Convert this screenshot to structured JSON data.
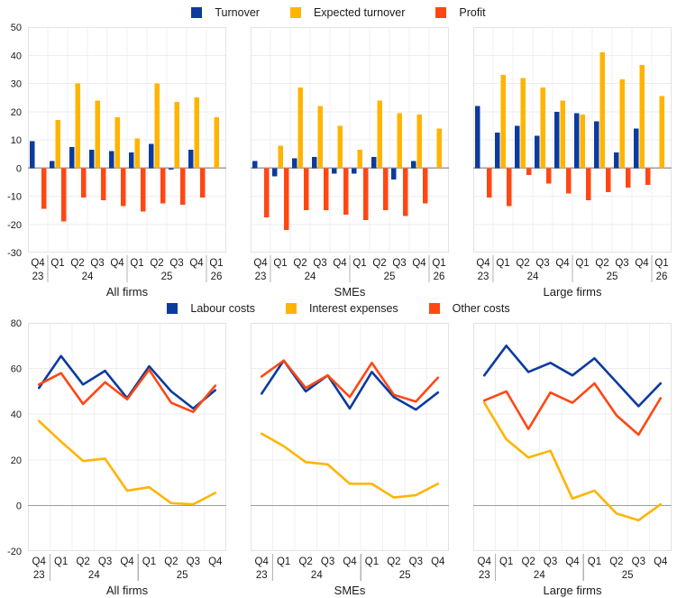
{
  "colors": {
    "series_blue": "#0c3b9e",
    "series_yellow": "#ffb400",
    "series_orange": "#ff4713",
    "panel_border": "#e3e3e3",
    "grid_h": "#ededed",
    "grid_v": "#f1f1f1",
    "zero_line": "#9e9e9e",
    "year_separator": "#b3b3b3",
    "text": "#1a1a1a"
  },
  "chart_data": {
    "top": {
      "type": "bar",
      "categories": [
        "Q4",
        "Q1",
        "Q2",
        "Q3",
        "Q4",
        "Q1",
        "Q2",
        "Q3",
        "Q4",
        "Q1"
      ],
      "year_groups": [
        {
          "label": "23",
          "span": 1
        },
        {
          "label": "24",
          "span": 4
        },
        {
          "label": "25",
          "span": 4
        },
        {
          "label": "26",
          "span": 1
        }
      ],
      "ylim": [
        -30,
        50
      ],
      "ytick_step": 10,
      "grid": true,
      "legend_position": "top-center",
      "legend": [
        {
          "name": "Turnover",
          "color": "#0c3b9e"
        },
        {
          "name": "Expected turnover",
          "color": "#ffb400"
        },
        {
          "name": "Profit",
          "color": "#ff4713"
        }
      ],
      "panels": [
        {
          "title": "All firms",
          "series": [
            {
              "name": "Turnover",
              "values": [
                9.5,
                2.5,
                7.5,
                6.5,
                6,
                5.5,
                8.5,
                -0.5,
                6.5,
                null
              ]
            },
            {
              "name": "Expected turnover",
              "values": [
                null,
                17,
                30,
                24,
                18,
                10.5,
                30,
                23.5,
                25,
                18
              ]
            },
            {
              "name": "Profit",
              "values": [
                -14.5,
                -19,
                -10.5,
                -11.5,
                -13.5,
                -15.5,
                -12.5,
                -13,
                -10.5,
                null
              ]
            }
          ]
        },
        {
          "title": "SMEs",
          "series": [
            {
              "name": "Turnover",
              "values": [
                2.5,
                -3,
                3.5,
                4,
                -2,
                -2,
                4,
                -4,
                2.5,
                null
              ]
            },
            {
              "name": "Expected turnover",
              "values": [
                null,
                8,
                28.5,
                22,
                15,
                6.5,
                24,
                19.5,
                19,
                14
              ]
            },
            {
              "name": "Profit",
              "values": [
                -17.5,
                -22,
                -15,
                -15,
                -16.5,
                -18.5,
                -15,
                -17,
                -12.5,
                null
              ]
            }
          ]
        },
        {
          "title": "Large firms",
          "series": [
            {
              "name": "Turnover",
              "values": [
                22,
                12.5,
                15,
                11.5,
                20,
                19.5,
                16.5,
                5.5,
                14,
                null
              ]
            },
            {
              "name": "Expected turnover",
              "values": [
                null,
                33,
                32,
                28.5,
                24,
                19,
                41,
                31.5,
                36.5,
                25.5
              ]
            },
            {
              "name": "Profit",
              "values": [
                -10.5,
                -13.5,
                -2.5,
                -5.5,
                -9,
                -11.5,
                -8.5,
                -7,
                -6,
                null
              ]
            }
          ]
        }
      ]
    },
    "bottom": {
      "type": "line",
      "categories": [
        "Q4",
        "Q1",
        "Q2",
        "Q3",
        "Q4",
        "Q1",
        "Q2",
        "Q3",
        "Q4"
      ],
      "year_groups": [
        {
          "label": "23",
          "span": 1
        },
        {
          "label": "24",
          "span": 4
        },
        {
          "label": "25",
          "span": 4
        }
      ],
      "ylim": [
        -20,
        80
      ],
      "ytick_step": 20,
      "grid": true,
      "legend_position": "top-center",
      "legend": [
        {
          "name": "Labour costs",
          "color": "#0c3b9e"
        },
        {
          "name": "Interest expenses",
          "color": "#ffb400"
        },
        {
          "name": "Other costs",
          "color": "#ff4713"
        }
      ],
      "panels": [
        {
          "title": "All firms",
          "series": [
            {
              "name": "Labour costs",
              "values": [
                51.5,
                65.5,
                53,
                59,
                47,
                61,
                50,
                42.5,
                50.5
              ]
            },
            {
              "name": "Interest expenses",
              "values": [
                37,
                28,
                19.5,
                20.5,
                6.5,
                8,
                1,
                0.5,
                5.5
              ]
            },
            {
              "name": "Other costs",
              "values": [
                53,
                58,
                44.5,
                54,
                46.5,
                59.5,
                45,
                41,
                52.5
              ]
            }
          ]
        },
        {
          "title": "SMEs",
          "series": [
            {
              "name": "Labour costs",
              "values": [
                49,
                63.5,
                50,
                57,
                42.5,
                58.5,
                47.5,
                42,
                49.5
              ]
            },
            {
              "name": "Interest expenses",
              "values": [
                31.5,
                26,
                19,
                18,
                9.5,
                9.5,
                3.5,
                4.5,
                9.5
              ]
            },
            {
              "name": "Other costs",
              "values": [
                56.5,
                63.5,
                51.5,
                57,
                47.5,
                62.5,
                48.5,
                45.5,
                56
              ]
            }
          ]
        },
        {
          "title": "Large firms",
          "series": [
            {
              "name": "Labour costs",
              "values": [
                57,
                70,
                58.5,
                62.5,
                57,
                64.5,
                54,
                43.5,
                53.5
              ]
            },
            {
              "name": "Interest expenses",
              "values": [
                45,
                29,
                21,
                24,
                3,
                6.5,
                -3.5,
                -6.5,
                0.5
              ]
            },
            {
              "name": "Other costs",
              "values": [
                46,
                50,
                33.5,
                49.5,
                45,
                53.5,
                39.5,
                31,
                47
              ]
            }
          ]
        }
      ]
    }
  }
}
